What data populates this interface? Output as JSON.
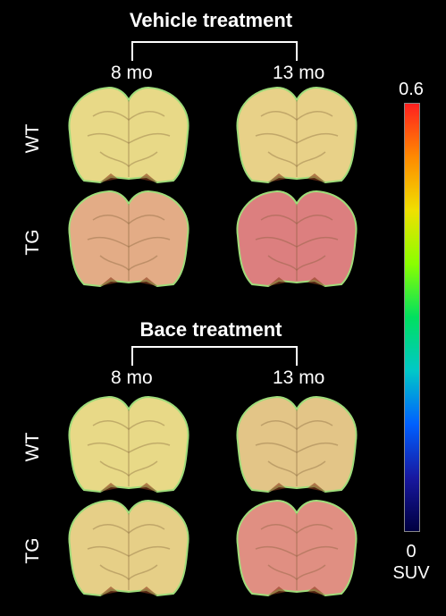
{
  "panels": [
    {
      "title": "Vehicle treatment",
      "columns": [
        "8 mo",
        "13 mo"
      ],
      "rows": [
        {
          "label": "WT",
          "tints": [
            "#e8d987",
            "#e8d188"
          ]
        },
        {
          "label": "TG",
          "tints": [
            "#e3ac86",
            "#dc7f7f"
          ]
        }
      ]
    },
    {
      "title": "Bace treatment",
      "columns": [
        "8 mo",
        "13 mo"
      ],
      "rows": [
        {
          "label": "WT",
          "tints": [
            "#e8d987",
            "#e3c587"
          ]
        },
        {
          "label": "TG",
          "tints": [
            "#e6cf87",
            "#e08f82"
          ]
        }
      ]
    }
  ],
  "colorbar": {
    "max_label": "0.6",
    "min_label": "0",
    "unit_label": "SUV",
    "colors": [
      "#ff2020",
      "#ff8a00",
      "#f0e000",
      "#8aff00",
      "#00e060",
      "#00c8c8",
      "#0060ff",
      "#1818a0",
      "#000040"
    ]
  }
}
